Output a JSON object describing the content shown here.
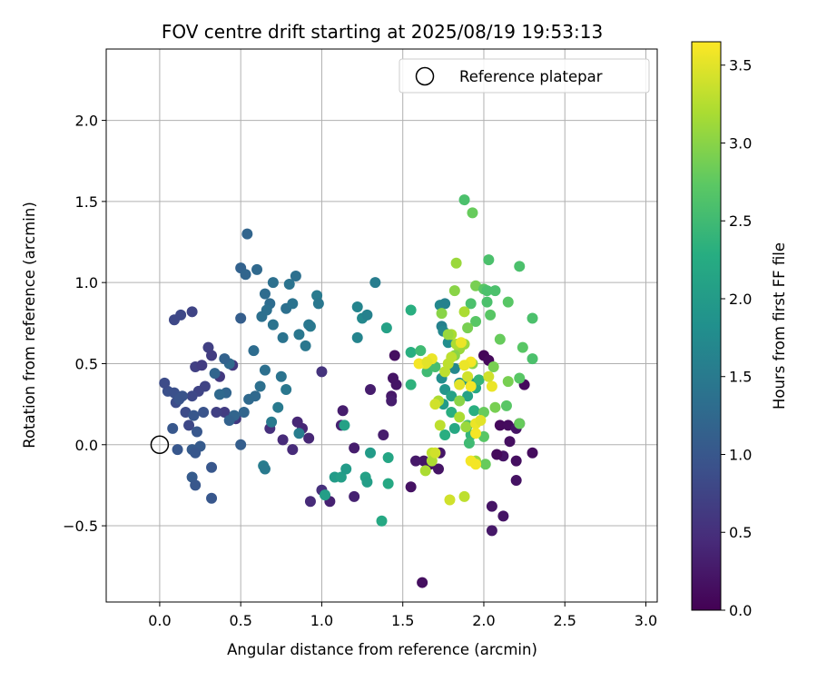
{
  "chart_data": {
    "type": "scatter",
    "title": "FOV centre drift starting at 2025/08/19 19:53:13",
    "xlabel": "Angular distance from reference (arcmin)",
    "ylabel": "Rotation from reference (arcmin)",
    "xlim": [
      -0.33,
      3.07
    ],
    "ylim": [
      -0.97,
      2.44
    ],
    "xticks": [
      "0.0",
      "0.5",
      "1.0",
      "1.5",
      "2.0",
      "2.5",
      "3.0"
    ],
    "yticks": [
      "−0.5",
      "0.0",
      "0.5",
      "1.0",
      "1.5",
      "2.0"
    ],
    "grid": true,
    "legend": {
      "placement": "top-right",
      "entries": [
        "Reference platepar"
      ]
    },
    "reference_point": {
      "x": 0.0,
      "y": 0.0
    },
    "colorbar": {
      "label": "Hours from first FF file",
      "range": [
        0.0,
        3.65
      ],
      "ticks": [
        "0.0",
        "0.5",
        "1.0",
        "1.5",
        "2.0",
        "2.5",
        "3.0",
        "3.5"
      ],
      "colormap": "viridis"
    },
    "points": [
      [
        2.0,
        0.55,
        0.05
      ],
      [
        2.03,
        0.52,
        0.08
      ],
      [
        2.1,
        0.12,
        0.1
      ],
      [
        2.15,
        0.12,
        0.12
      ],
      [
        2.25,
        0.37,
        0.1
      ],
      [
        2.22,
        0.13,
        0.15
      ],
      [
        2.2,
        0.1,
        0.2
      ],
      [
        2.16,
        0.02,
        0.15
      ],
      [
        2.3,
        -0.05,
        0.12
      ],
      [
        2.2,
        -0.1,
        0.15
      ],
      [
        2.12,
        -0.07,
        0.2
      ],
      [
        2.08,
        -0.06,
        0.1
      ],
      [
        2.2,
        -0.22,
        0.18
      ],
      [
        2.05,
        -0.38,
        0.2
      ],
      [
        2.12,
        -0.44,
        0.2
      ],
      [
        2.05,
        -0.53,
        0.25
      ],
      [
        1.62,
        -0.85,
        0.15
      ],
      [
        1.63,
        -0.1,
        0.22
      ],
      [
        1.58,
        -0.1,
        0.25
      ],
      [
        1.67,
        -0.12,
        0.2
      ],
      [
        1.72,
        -0.15,
        0.2
      ],
      [
        1.55,
        -0.26,
        0.18
      ],
      [
        1.73,
        -0.05,
        0.22
      ],
      [
        1.45,
        0.55,
        0.15
      ],
      [
        1.46,
        0.37,
        0.2
      ],
      [
        1.44,
        0.41,
        0.2
      ],
      [
        1.43,
        0.3,
        0.25
      ],
      [
        1.43,
        0.27,
        0.3
      ],
      [
        1.38,
        0.06,
        0.3
      ],
      [
        1.3,
        0.34,
        0.3
      ],
      [
        1.13,
        0.21,
        0.3
      ],
      [
        1.12,
        0.12,
        0.35
      ],
      [
        1.2,
        -0.02,
        0.3
      ],
      [
        1.2,
        -0.32,
        0.35
      ],
      [
        1.05,
        -0.35,
        0.35
      ],
      [
        0.93,
        -0.35,
        0.45
      ],
      [
        0.92,
        0.04,
        0.4
      ],
      [
        0.88,
        0.1,
        0.4
      ],
      [
        0.85,
        0.14,
        0.4
      ],
      [
        0.82,
        -0.03,
        0.45
      ],
      [
        0.76,
        0.03,
        0.45
      ],
      [
        0.68,
        0.1,
        0.5
      ],
      [
        1.0,
        0.45,
        0.55
      ],
      [
        1.0,
        -0.28,
        0.5
      ],
      [
        0.45,
        0.49,
        0.6
      ],
      [
        0.47,
        0.16,
        0.6
      ],
      [
        0.4,
        0.2,
        0.65
      ],
      [
        0.37,
        0.42,
        0.6
      ],
      [
        0.35,
        0.2,
        0.7
      ],
      [
        0.3,
        0.6,
        0.7
      ],
      [
        0.32,
        0.55,
        0.65
      ],
      [
        0.22,
        0.48,
        0.7
      ],
      [
        0.26,
        0.49,
        0.65
      ],
      [
        0.2,
        0.82,
        0.75
      ],
      [
        0.13,
        0.8,
        0.8
      ],
      [
        0.09,
        0.77,
        0.8
      ],
      [
        0.28,
        0.36,
        0.75
      ],
      [
        0.24,
        0.33,
        0.75
      ],
      [
        0.2,
        0.3,
        0.8
      ],
      [
        0.18,
        0.12,
        0.8
      ],
      [
        0.16,
        0.2,
        0.85
      ],
      [
        0.1,
        0.26,
        0.85
      ],
      [
        0.05,
        0.33,
        0.9
      ],
      [
        0.09,
        0.32,
        0.9
      ],
      [
        0.03,
        0.38,
        0.85
      ],
      [
        0.12,
        0.28,
        0.95
      ],
      [
        0.14,
        0.3,
        0.95
      ],
      [
        0.23,
        0.08,
        1.0
      ],
      [
        0.21,
        0.18,
        1.0
      ],
      [
        0.27,
        0.2,
        0.95
      ],
      [
        0.08,
        0.1,
        1.0
      ],
      [
        0.11,
        -0.03,
        1.0
      ],
      [
        0.2,
        -0.03,
        1.05
      ],
      [
        0.25,
        -0.01,
        1.05
      ],
      [
        0.22,
        -0.05,
        1.0
      ],
      [
        0.2,
        -0.2,
        1.05
      ],
      [
        0.22,
        -0.25,
        1.0
      ],
      [
        0.32,
        -0.14,
        1.0
      ],
      [
        0.32,
        -0.33,
        1.0
      ],
      [
        0.5,
        0.78,
        1.1
      ],
      [
        0.5,
        1.09,
        1.15
      ],
      [
        0.53,
        1.05,
        1.2
      ],
      [
        0.54,
        1.3,
        1.2
      ],
      [
        0.6,
        1.08,
        1.25
      ],
      [
        0.65,
        0.93,
        1.3
      ],
      [
        0.7,
        1.0,
        1.35
      ],
      [
        0.68,
        0.87,
        1.3
      ],
      [
        0.66,
        0.83,
        1.35
      ],
      [
        0.63,
        0.79,
        1.35
      ],
      [
        0.7,
        0.74,
        1.4
      ],
      [
        0.78,
        0.84,
        1.35
      ],
      [
        0.8,
        0.99,
        1.4
      ],
      [
        0.84,
        1.04,
        1.35
      ],
      [
        0.82,
        0.87,
        1.4
      ],
      [
        0.86,
        0.68,
        1.45
      ],
      [
        0.9,
        0.61,
        1.45
      ],
      [
        0.93,
        0.73,
        1.5
      ],
      [
        0.92,
        0.74,
        1.45
      ],
      [
        0.97,
        0.92,
        1.5
      ],
      [
        0.98,
        0.87,
        1.45
      ],
      [
        0.86,
        0.07,
        1.55
      ],
      [
        0.78,
        0.34,
        1.45
      ],
      [
        0.75,
        0.42,
        1.4
      ],
      [
        0.73,
        0.23,
        1.5
      ],
      [
        0.69,
        0.14,
        1.5
      ],
      [
        0.65,
        0.46,
        1.35
      ],
      [
        0.62,
        0.36,
        1.35
      ],
      [
        0.58,
        0.58,
        1.3
      ],
      [
        0.59,
        0.3,
        1.25
      ],
      [
        0.55,
        0.28,
        1.25
      ],
      [
        0.52,
        0.2,
        1.2
      ],
      [
        0.46,
        0.18,
        1.2
      ],
      [
        0.43,
        0.15,
        1.15
      ],
      [
        0.41,
        0.32,
        1.2
      ],
      [
        0.37,
        0.31,
        1.25
      ],
      [
        0.43,
        0.5,
        1.25
      ],
      [
        0.4,
        0.53,
        1.15
      ],
      [
        0.34,
        0.44,
        1.2
      ],
      [
        0.5,
        0.0,
        1.1
      ],
      [
        0.76,
        0.66,
        1.4
      ],
      [
        1.22,
        0.85,
        1.65
      ],
      [
        1.25,
        0.78,
        1.7
      ],
      [
        1.28,
        0.8,
        1.6
      ],
      [
        1.33,
        1.0,
        1.55
      ],
      [
        1.22,
        0.66,
        1.65
      ],
      [
        0.64,
        -0.13,
        1.55
      ],
      [
        0.65,
        -0.15,
        1.5
      ],
      [
        1.08,
        -0.2,
        2.0
      ],
      [
        1.12,
        -0.2,
        2.05
      ],
      [
        1.15,
        -0.15,
        2.0
      ],
      [
        1.02,
        -0.31,
        2.05
      ],
      [
        1.27,
        -0.2,
        2.1
      ],
      [
        1.28,
        -0.23,
        2.05
      ],
      [
        1.3,
        -0.05,
        2.0
      ],
      [
        1.14,
        0.12,
        2.1
      ],
      [
        1.4,
        0.72,
        2.1
      ],
      [
        1.41,
        -0.08,
        2.15
      ],
      [
        1.41,
        -0.24,
        2.2
      ],
      [
        1.37,
        -0.47,
        2.2
      ],
      [
        1.55,
        0.83,
        2.3
      ],
      [
        1.55,
        0.57,
        2.3
      ],
      [
        1.55,
        0.37,
        2.35
      ],
      [
        1.61,
        0.58,
        2.5
      ],
      [
        1.65,
        0.45,
        2.5
      ],
      [
        1.7,
        0.48,
        2.55
      ],
      [
        1.74,
        0.73,
        1.6
      ],
      [
        1.73,
        0.86,
        1.7
      ],
      [
        1.76,
        0.87,
        1.6
      ],
      [
        1.75,
        0.7,
        1.7
      ],
      [
        1.78,
        0.63,
        1.8
      ],
      [
        1.74,
        0.41,
        1.8
      ],
      [
        1.76,
        0.34,
        1.9
      ],
      [
        1.75,
        0.25,
        2.0
      ],
      [
        1.8,
        0.3,
        2.1
      ],
      [
        1.82,
        0.1,
        2.2
      ],
      [
        1.8,
        0.2,
        2.3
      ],
      [
        1.76,
        0.06,
        2.3
      ],
      [
        1.82,
        0.47,
        1.7
      ],
      [
        1.85,
        0.38,
        1.8
      ],
      [
        1.9,
        0.4,
        2.0
      ],
      [
        1.92,
        0.38,
        1.9
      ],
      [
        1.9,
        0.3,
        2.1
      ],
      [
        1.95,
        0.35,
        2.2
      ],
      [
        1.94,
        0.21,
        2.3
      ],
      [
        1.92,
        0.06,
        2.4
      ],
      [
        1.91,
        0.01,
        2.5
      ],
      [
        1.9,
        0.12,
        2.6
      ],
      [
        1.97,
        0.4,
        2.4
      ],
      [
        1.88,
        1.51,
        2.6
      ],
      [
        1.93,
        1.43,
        2.8
      ],
      [
        1.95,
        0.98,
        2.9
      ],
      [
        1.92,
        0.87,
        2.6
      ],
      [
        1.95,
        0.76,
        2.7
      ],
      [
        1.9,
        0.72,
        2.9
      ],
      [
        2.03,
        1.14,
        2.6
      ],
      [
        2.0,
        0.96,
        2.7
      ],
      [
        2.02,
        0.95,
        2.6
      ],
      [
        2.02,
        0.88,
        2.6
      ],
      [
        2.04,
        0.8,
        2.7
      ],
      [
        2.07,
        0.95,
        2.6
      ],
      [
        2.1,
        0.65,
        2.8
      ],
      [
        2.15,
        0.88,
        2.7
      ],
      [
        2.22,
        1.1,
        2.6
      ],
      [
        2.24,
        0.6,
        2.7
      ],
      [
        2.3,
        0.78,
        2.6
      ],
      [
        2.3,
        0.53,
        2.6
      ],
      [
        2.22,
        0.41,
        2.7
      ],
      [
        2.15,
        0.39,
        2.9
      ],
      [
        2.14,
        0.24,
        2.7
      ],
      [
        2.22,
        0.13,
        2.8
      ],
      [
        2.07,
        0.23,
        2.9
      ],
      [
        2.06,
        0.48,
        2.9
      ],
      [
        2.0,
        0.2,
        2.8
      ],
      [
        2.0,
        0.05,
        2.7
      ],
      [
        2.01,
        -0.12,
        2.8
      ],
      [
        1.95,
        -0.1,
        3.1
      ],
      [
        1.93,
        0.5,
        3.0
      ],
      [
        1.88,
        0.62,
        3.1
      ],
      [
        1.85,
        0.59,
        3.1
      ],
      [
        1.82,
        0.55,
        3.0
      ],
      [
        1.83,
        0.62,
        3.2
      ],
      [
        1.8,
        0.68,
        3.2
      ],
      [
        1.78,
        0.68,
        3.1
      ],
      [
        1.78,
        0.5,
        3.3
      ],
      [
        1.76,
        0.45,
        3.3
      ],
      [
        1.85,
        0.27,
        3.0
      ],
      [
        1.89,
        0.11,
        3.1
      ],
      [
        1.85,
        0.17,
        3.2
      ],
      [
        1.8,
        0.54,
        3.3
      ],
      [
        1.88,
        0.82,
        3.2
      ],
      [
        1.82,
        0.95,
        3.0
      ],
      [
        1.83,
        1.12,
        3.1
      ],
      [
        1.74,
        0.81,
        3.0
      ],
      [
        1.72,
        0.27,
        3.2
      ],
      [
        1.73,
        0.12,
        3.3
      ],
      [
        1.7,
        0.25,
        3.4
      ],
      [
        1.68,
        -0.05,
        3.3
      ],
      [
        1.68,
        -0.1,
        3.2
      ],
      [
        1.64,
        -0.16,
        3.2
      ],
      [
        1.7,
        -0.05,
        3.4
      ],
      [
        1.64,
        0.5,
        3.5
      ],
      [
        1.68,
        0.53,
        3.55
      ],
      [
        1.6,
        0.5,
        3.6
      ],
      [
        1.65,
        0.51,
        3.5
      ],
      [
        1.85,
        0.37,
        3.5
      ],
      [
        1.9,
        0.42,
        3.4
      ],
      [
        1.92,
        0.51,
        3.6
      ],
      [
        1.86,
        0.63,
        3.55
      ],
      [
        1.92,
        0.36,
        3.6
      ],
      [
        1.88,
        0.49,
        3.55
      ],
      [
        1.95,
        0.07,
        3.6
      ],
      [
        1.95,
        0.13,
        3.55
      ],
      [
        1.98,
        0.15,
        3.5
      ],
      [
        1.92,
        -0.1,
        3.6
      ],
      [
        1.95,
        -0.12,
        3.6
      ],
      [
        2.05,
        0.36,
        3.55
      ],
      [
        2.03,
        0.42,
        3.4
      ],
      [
        1.79,
        -0.34,
        3.4
      ],
      [
        1.88,
        -0.32,
        3.3
      ]
    ]
  }
}
